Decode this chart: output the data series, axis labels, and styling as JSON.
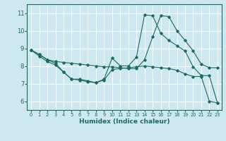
{
  "xlabel": "Humidex (Indice chaleur)",
  "bg_color": "#cde8f0",
  "grid_color": "#ffffff",
  "line_color": "#1a6b5a",
  "xlim": [
    -0.5,
    23.5
  ],
  "ylim": [
    5.5,
    11.5
  ],
  "xticks": [
    0,
    1,
    2,
    3,
    4,
    5,
    6,
    7,
    8,
    9,
    10,
    11,
    12,
    13,
    14,
    15,
    16,
    17,
    18,
    19,
    20,
    21,
    22,
    23
  ],
  "yticks": [
    6,
    7,
    8,
    9,
    10,
    11
  ],
  "line1_x": [
    0,
    1,
    2,
    3,
    4,
    5,
    6,
    7,
    8,
    9,
    10,
    11,
    12,
    13,
    14,
    15,
    16,
    17,
    18,
    19,
    20,
    21,
    22,
    23
  ],
  "line1_y": [
    8.9,
    8.65,
    8.35,
    8.25,
    8.2,
    8.15,
    8.1,
    8.05,
    8.0,
    7.95,
    7.95,
    7.9,
    7.85,
    7.85,
    8.35,
    9.65,
    10.85,
    10.8,
    10.0,
    9.45,
    8.85,
    8.1,
    7.9,
    7.9
  ],
  "line2_x": [
    0,
    1,
    2,
    3,
    4,
    5,
    6,
    7,
    8,
    9,
    10,
    11,
    12,
    13,
    14,
    15,
    16,
    17,
    18,
    19,
    20,
    21,
    22,
    23
  ],
  "line2_y": [
    8.9,
    8.65,
    8.35,
    8.15,
    7.65,
    7.25,
    7.25,
    7.15,
    7.05,
    7.25,
    8.45,
    8.0,
    8.0,
    8.5,
    10.9,
    10.85,
    9.85,
    9.45,
    9.15,
    8.85,
    7.95,
    7.45,
    7.45,
    5.9
  ],
  "line3_x": [
    0,
    1,
    2,
    3,
    4,
    5,
    6,
    7,
    8,
    9,
    10,
    11,
    12,
    13,
    14,
    15,
    16,
    17,
    18,
    19,
    20,
    21,
    22,
    23
  ],
  "line3_y": [
    8.9,
    8.55,
    8.25,
    8.05,
    7.65,
    7.25,
    7.2,
    7.1,
    7.05,
    7.2,
    7.8,
    7.85,
    7.9,
    7.95,
    8.0,
    7.95,
    7.9,
    7.85,
    7.75,
    7.55,
    7.4,
    7.4,
    6.0,
    5.9
  ]
}
